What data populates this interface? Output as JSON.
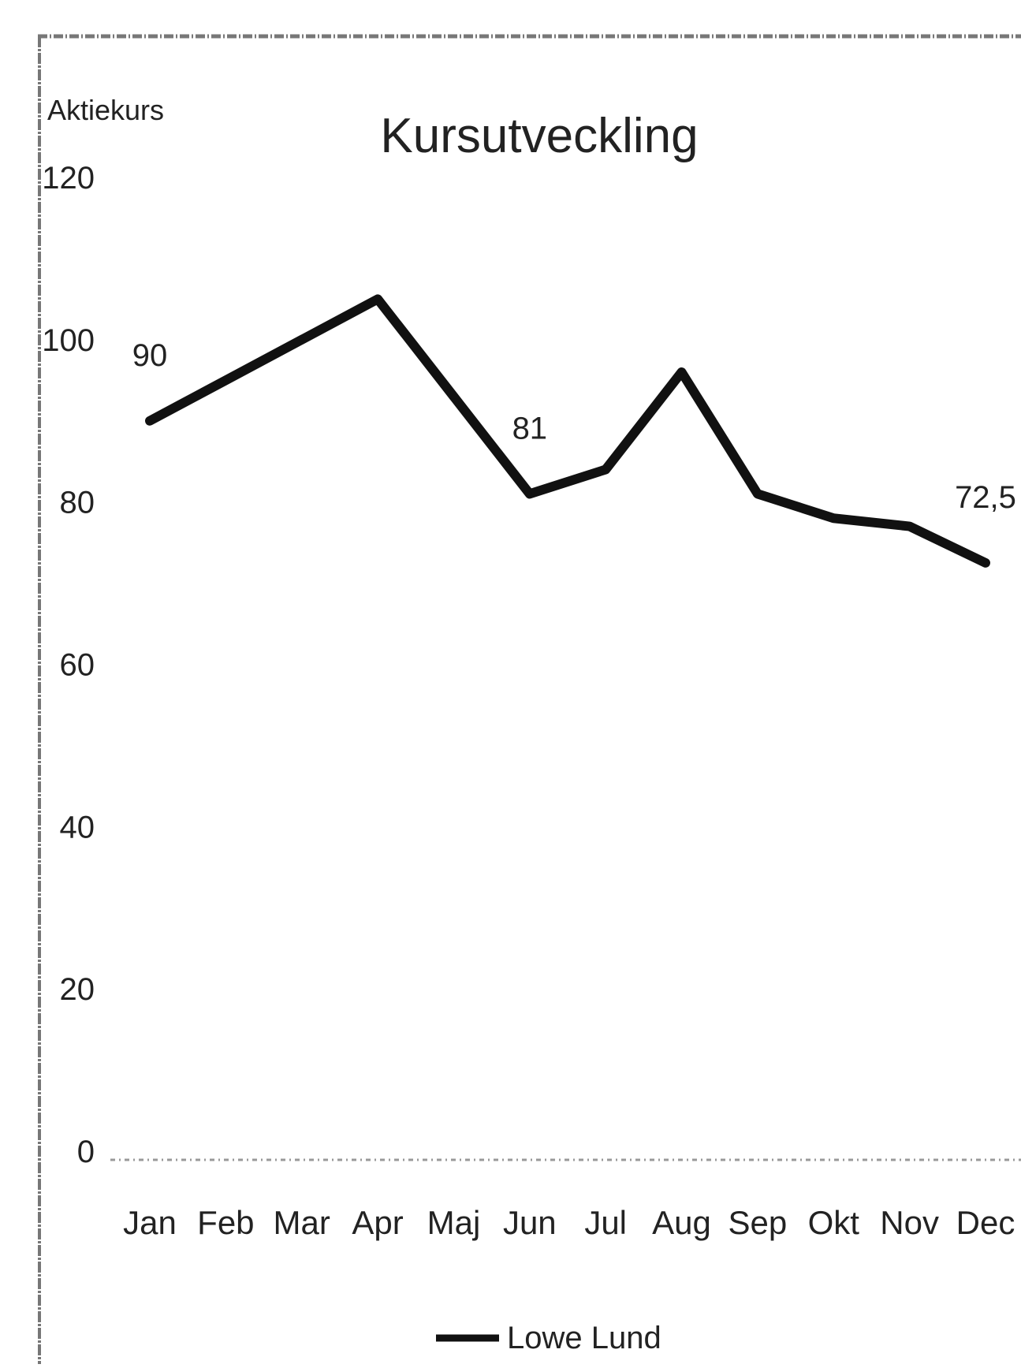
{
  "chart_data": {
    "type": "line",
    "title": "Kursutveckling",
    "ylabel": "Aktiekurs",
    "xlabel": "",
    "categories": [
      "Jan",
      "Feb",
      "Mar",
      "Apr",
      "Maj",
      "Jun",
      "Jul",
      "Aug",
      "Sep",
      "Okt",
      "Nov",
      "Dec"
    ],
    "series": [
      {
        "name": "Lowe Lund",
        "values": [
          90,
          95,
          100,
          105,
          93,
          81,
          84,
          96,
          81,
          78,
          77,
          72.5
        ]
      }
    ],
    "data_labels": [
      {
        "category": "Jan",
        "text": "90"
      },
      {
        "category": "Jun",
        "text": "81"
      },
      {
        "category": "Dec",
        "text": "72,5"
      }
    ],
    "yticks": [
      "0",
      "20",
      "40",
      "60",
      "80",
      "100",
      "120"
    ],
    "ylim": [
      0,
      120
    ],
    "grid": false,
    "legend_position": "bottom",
    "colors": {
      "line": "#111111",
      "text": "#222222",
      "frame": "#777777",
      "background": "#ffffff"
    }
  }
}
